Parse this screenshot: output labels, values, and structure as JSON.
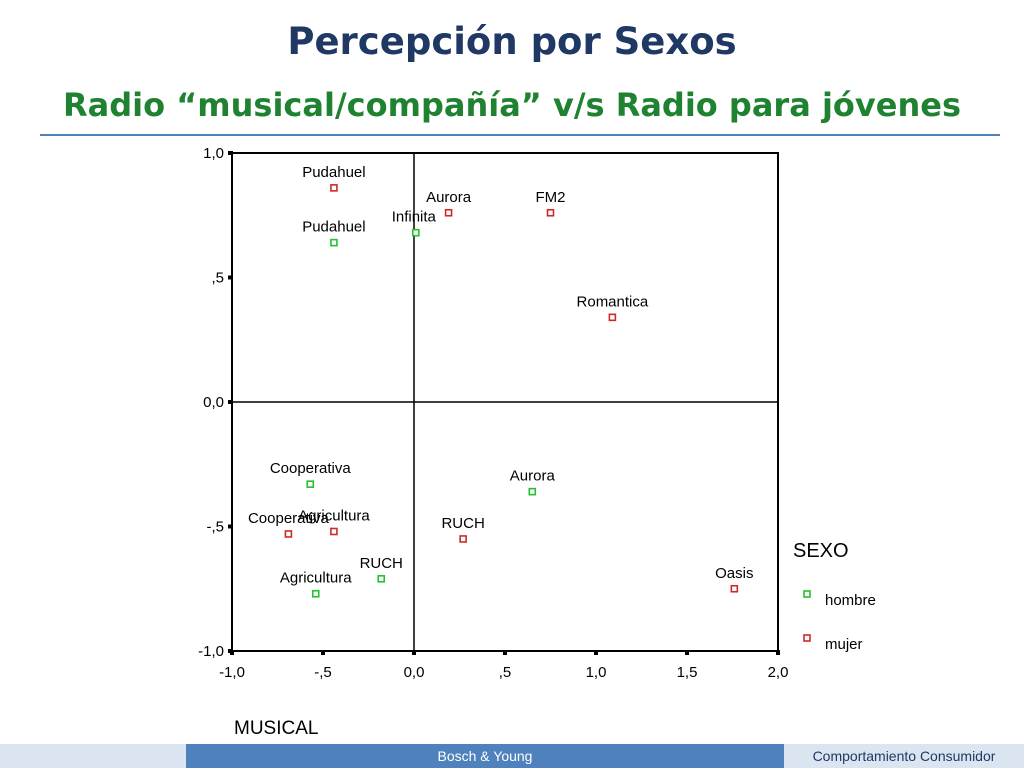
{
  "slide": {
    "title": "Percepción por Sexos",
    "subtitle": "Radio “musical/compañía” v/s Radio para jóvenes"
  },
  "footer": {
    "left": "Bosch & Young",
    "right": "Comportamiento Consumidor"
  },
  "colors": {
    "title": "#1f3864",
    "subtitle": "#1e8230",
    "hombre": "#22c22a",
    "mujer": "#cc2a2a",
    "rule": "#4f81bd"
  },
  "chart_data": {
    "type": "scatter",
    "xlabel": "MUSICAL",
    "ylabel": "",
    "xlim": [
      -1.0,
      2.0
    ],
    "ylim": [
      -1.0,
      1.0
    ],
    "xticks": [
      "-1,0",
      "-,5",
      "0,0",
      ",5",
      "1,0",
      "1,5",
      "2,0"
    ],
    "yticks": [
      "1,0",
      ",5",
      "0,0",
      "-,5",
      "-1,0"
    ],
    "grid": false,
    "reference_lines": {
      "x": 0.0,
      "y": 0.0
    },
    "legend": {
      "title": "SEXO",
      "position": "right"
    },
    "series": [
      {
        "name": "hombre",
        "points": [
          {
            "label": "Pudahuel",
            "x": -0.44,
            "y": 0.64
          },
          {
            "label": "Infinita",
            "x": 0.01,
            "y": 0.68
          },
          {
            "label": "Cooperativa",
            "x": -0.57,
            "y": -0.33
          },
          {
            "label": "Aurora",
            "x": 0.65,
            "y": -0.36
          },
          {
            "label": "RUCH",
            "x": -0.18,
            "y": -0.71
          },
          {
            "label": "Agricultura",
            "x": -0.54,
            "y": -0.77
          }
        ]
      },
      {
        "name": "mujer",
        "points": [
          {
            "label": "Pudahuel",
            "x": -0.44,
            "y": 0.86
          },
          {
            "label": "Aurora",
            "x": 0.19,
            "y": 0.76
          },
          {
            "label": "FM2",
            "x": 0.75,
            "y": 0.76
          },
          {
            "label": "Romantica",
            "x": 1.09,
            "y": 0.34
          },
          {
            "label": "Cooperativa",
            "x": -0.69,
            "y": -0.53
          },
          {
            "label": "Agricultura",
            "x": -0.44,
            "y": -0.52
          },
          {
            "label": "RUCH",
            "x": 0.27,
            "y": -0.55
          },
          {
            "label": "Oasis",
            "x": 1.76,
            "y": -0.75
          }
        ]
      }
    ]
  }
}
